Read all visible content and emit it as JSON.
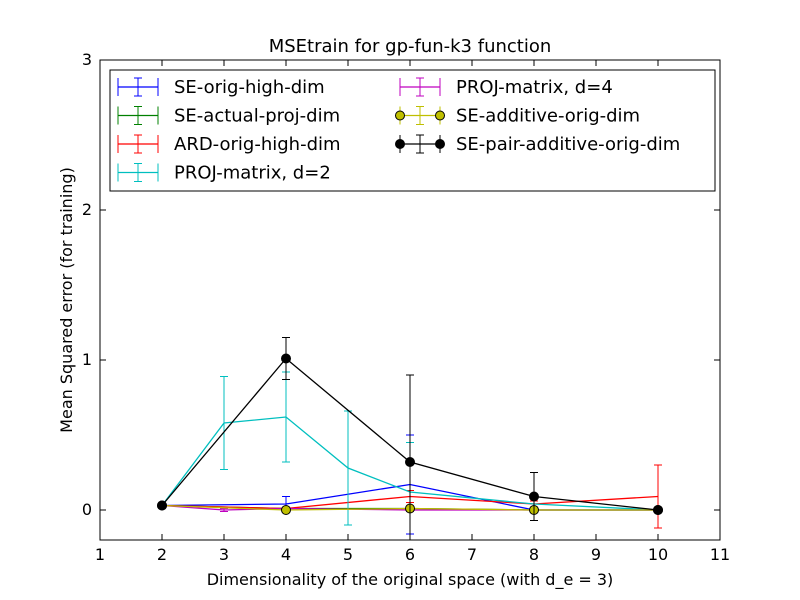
{
  "chart_data": {
    "type": "line",
    "title": "MSEtrain for gp-fun-k3 function",
    "xlabel": "Dimensionality of the original space (with d_e = 3)",
    "ylabel": "Mean Squared error (for training)",
    "xlim": [
      1,
      11
    ],
    "ylim": [
      -0.2,
      3
    ],
    "xticks": [
      "1",
      "2",
      "3",
      "4",
      "5",
      "6",
      "7",
      "8",
      "9",
      "10",
      "11"
    ],
    "yticks": [
      "0",
      "1",
      "2",
      "3"
    ],
    "grid": false,
    "legend_position": "top",
    "series": [
      {
        "name": "SE-orig-high-dim",
        "color": "#0000ff",
        "marker": "none",
        "x": [
          2,
          4,
          6,
          8,
          10
        ],
        "y": [
          0.03,
          0.04,
          0.17,
          0.0,
          0.0
        ],
        "yerr": [
          0.01,
          0.05,
          0.33,
          0.01,
          0.0
        ]
      },
      {
        "name": "SE-actual-proj-dim",
        "color": "#008000",
        "marker": "none",
        "x": [
          2,
          4,
          6,
          8,
          10
        ],
        "y": [
          0.03,
          0.01,
          0.01,
          0.0,
          0.0
        ],
        "yerr": [
          0.0,
          0.01,
          0.01,
          0.0,
          0.0
        ]
      },
      {
        "name": "ARD-orig-high-dim",
        "color": "#ff0000",
        "marker": "none",
        "x": [
          2,
          4,
          6,
          8,
          10
        ],
        "y": [
          0.03,
          0.01,
          0.09,
          0.04,
          0.09
        ],
        "yerr": [
          0.0,
          0.01,
          0.04,
          0.02,
          0.21
        ]
      },
      {
        "name": "PROJ-matrix, d=2",
        "color": "#00bfbf",
        "marker": "none",
        "x": [
          2,
          3,
          4,
          5,
          6,
          8,
          10
        ],
        "y": [
          0.03,
          0.58,
          0.62,
          0.28,
          0.12,
          0.04,
          0.0
        ],
        "yerr": [
          0.0,
          0.31,
          0.3,
          0.38,
          0.33,
          0.05,
          0.01
        ]
      },
      {
        "name": "PROJ-matrix, d=4",
        "color": "#bf00bf",
        "marker": "none",
        "x": [
          2,
          3,
          4,
          6,
          8,
          10
        ],
        "y": [
          0.03,
          0.0,
          0.01,
          0.0,
          0.0,
          0.0
        ],
        "yerr": [
          0.0,
          0.01,
          0.01,
          0.01,
          0.0,
          0.0
        ]
      },
      {
        "name": "SE-additive-orig-dim",
        "color": "#bfbf00",
        "marker": "circle",
        "x": [
          2,
          4,
          6,
          8,
          10
        ],
        "y": [
          0.03,
          0.0,
          0.01,
          0.0,
          0.0
        ],
        "yerr": [
          0.0,
          0.0,
          0.01,
          0.0,
          0.0
        ]
      },
      {
        "name": "SE-pair-additive-orig-dim",
        "color": "#000000",
        "marker": "circle",
        "x": [
          2,
          4,
          6,
          8,
          10
        ],
        "y": [
          0.03,
          1.01,
          0.32,
          0.09,
          0.0
        ],
        "yerr": [
          0.0,
          0.14,
          0.58,
          0.16,
          0.0
        ]
      }
    ]
  }
}
